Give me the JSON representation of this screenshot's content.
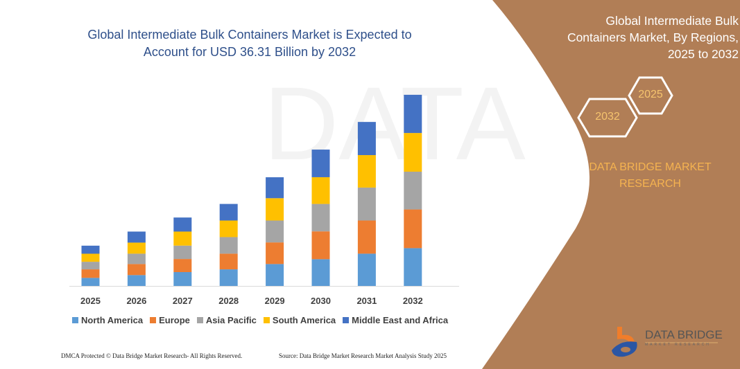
{
  "title": "Global Intermediate Bulk Containers Market is Expected to Account for USD 36.31 Billion by 2032",
  "title_lines": [
    "Global Intermediate Bulk Containers Market is Expected to",
    "Account for USD 36.31 Billion by 2032"
  ],
  "side_panel": {
    "title_lines": [
      "Global Intermediate Bulk",
      "Containers Market, By Regions,",
      "2025 to 2032"
    ],
    "hex_start": "2025",
    "hex_end": "2032",
    "brand_lines": [
      "DATA BRIDGE MARKET",
      "RESEARCH"
    ],
    "logo_text": "DATA BRIDGE",
    "logo_subtext": "MARKET RESEARCH",
    "panel_color": "#b17e56"
  },
  "footer": {
    "left": "DMCA Protected © Data Bridge Market Research- All Rights Reserved.",
    "right": "Source: Data Bridge Market Research Market Analysis Study 2025"
  },
  "chart_data": {
    "type": "bar",
    "stacked": true,
    "title": "Global Intermediate Bulk Containers Market is Expected to Account for USD 36.31 Billion by 2032",
    "xlabel": "",
    "ylabel": "",
    "unit": "USD Billion (estimated)",
    "grid": false,
    "legend_position": "bottom",
    "categories": [
      "2025",
      "2026",
      "2027",
      "2028",
      "2029",
      "2030",
      "2031",
      "2032"
    ],
    "series": [
      {
        "name": "North America",
        "color": "#5b9bd5",
        "values": [
          1.53,
          2.06,
          2.63,
          3.15,
          4.16,
          5.08,
          6.13,
          7.18
        ]
      },
      {
        "name": "Europe",
        "color": "#ed7d31",
        "values": [
          1.62,
          2.1,
          2.49,
          2.98,
          4.11,
          5.29,
          6.3,
          7.35
        ]
      },
      {
        "name": "Asia Pacific",
        "color": "#a5a5a5",
        "values": [
          1.44,
          1.97,
          2.54,
          3.15,
          4.16,
          5.21,
          6.26,
          7.18
        ]
      },
      {
        "name": "South America",
        "color": "#ffc000",
        "values": [
          1.53,
          2.1,
          2.67,
          3.15,
          4.24,
          5.08,
          6.17,
          7.35
        ]
      },
      {
        "name": "Middle East and Africa",
        "color": "#4472c4",
        "values": [
          1.53,
          2.1,
          2.67,
          3.15,
          3.98,
          5.25,
          6.3,
          7.26
        ]
      }
    ],
    "ylim": [
      0,
      36.31
    ]
  }
}
